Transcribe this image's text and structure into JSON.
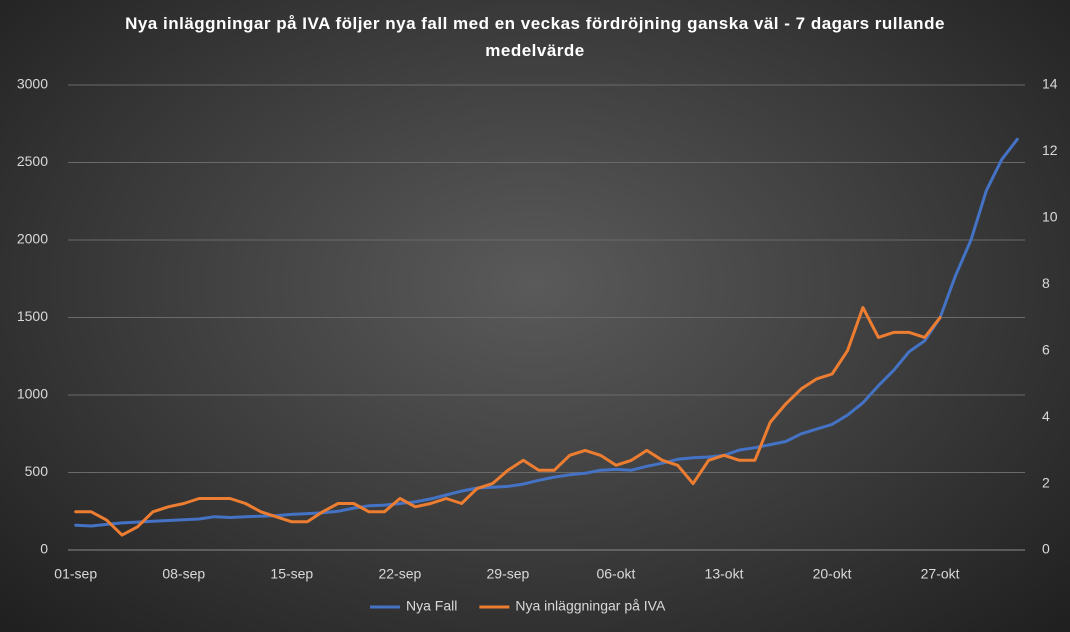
{
  "chart_data": {
    "type": "line",
    "title": "Nya inläggningar  på IVA följer nya fall med en veckas fördröjning ganska väl - 7 dagars rullande  medelvärde",
    "categories": [
      "01-sep",
      null,
      null,
      null,
      null,
      null,
      null,
      "08-sep",
      null,
      null,
      null,
      null,
      null,
      null,
      "15-sep",
      null,
      null,
      null,
      null,
      null,
      null,
      "22-sep",
      null,
      null,
      null,
      null,
      null,
      null,
      "29-sep",
      null,
      null,
      null,
      null,
      null,
      null,
      "06-okt",
      null,
      null,
      null,
      null,
      null,
      null,
      "13-okt",
      null,
      null,
      null,
      null,
      null,
      null,
      "20-okt",
      null,
      null,
      null,
      null,
      null,
      null,
      "27-okt",
      null,
      null,
      null,
      null,
      null
    ],
    "series": [
      {
        "name": "Nya Fall",
        "color": "#4472c4",
        "values": [
          160,
          155,
          165,
          175,
          180,
          185,
          190,
          195,
          200,
          215,
          210,
          215,
          218,
          222,
          230,
          235,
          240,
          250,
          270,
          285,
          290,
          300,
          310,
          330,
          355,
          380,
          400,
          405,
          410,
          425,
          450,
          470,
          485,
          495,
          515,
          520,
          515,
          540,
          560,
          585,
          595,
          600,
          610,
          645,
          660,
          680,
          700,
          750,
          780,
          810,
          870,
          950,
          1060,
          1160,
          1280,
          1350,
          1500,
          1770,
          2000,
          2320,
          2520,
          2650
        ]
      },
      {
        "name": "Nya inläggningar på IVA",
        "color": "#ed7d31",
        "axis": "y2",
        "values": [
          1.15,
          1.15,
          0.9,
          0.45,
          0.7,
          1.15,
          1.3,
          1.4,
          1.55,
          1.55,
          1.55,
          1.4,
          1.15,
          1.0,
          0.85,
          0.85,
          1.15,
          1.4,
          1.4,
          1.15,
          1.15,
          1.55,
          1.3,
          1.4,
          1.55,
          1.4,
          1.85,
          2.0,
          2.4,
          2.7,
          2.4,
          2.4,
          2.85,
          3.0,
          2.85,
          2.55,
          2.7,
          3.0,
          2.7,
          2.55,
          2.0,
          2.7,
          2.85,
          2.7,
          2.7,
          3.85,
          4.4,
          4.85,
          5.15,
          5.3,
          6.0,
          7.3,
          6.4,
          6.55,
          6.55,
          6.4,
          7.0,
          null,
          null,
          null,
          null,
          null
        ]
      }
    ],
    "ylim": [
      0,
      3000
    ],
    "yticks": [
      0,
      500,
      1000,
      1500,
      2000,
      2500,
      3000
    ],
    "y2lim": [
      0,
      14
    ],
    "y2ticks": [
      0,
      2,
      4,
      6,
      8,
      10,
      12,
      14
    ],
    "grid": true,
    "legend": "bottom"
  }
}
